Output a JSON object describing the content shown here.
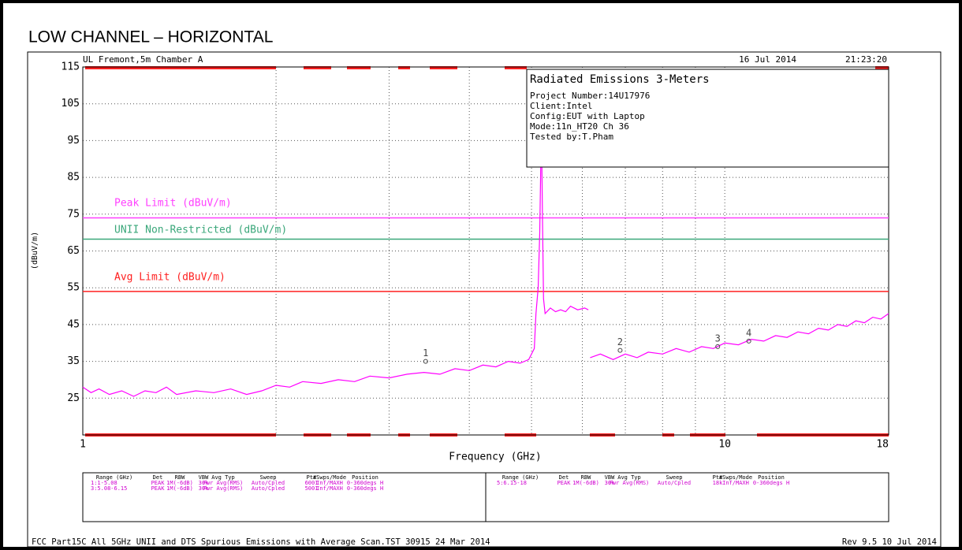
{
  "title": "LOW CHANNEL – HORIZONTAL",
  "header": {
    "site": "UL Fremont,5m Chamber A",
    "date": "16 Jul 2014",
    "time": "21:23:20"
  },
  "info": {
    "heading": "Radiated Emissions 3-Meters",
    "lines": [
      "Project Number:14U17976",
      "Client:Intel",
      "Config:EUT with Laptop",
      "Mode:11n_HT20 Ch 36",
      "Tested by:T.Pham"
    ]
  },
  "chart_data": {
    "type": "line",
    "log_x": true,
    "x_label": "Frequency (GHz)",
    "y_label": "(dBuV/m)",
    "xlim": [
      1,
      18
    ],
    "xticks": [
      1,
      10,
      18
    ],
    "xminor": [
      2,
      3,
      4,
      5,
      6,
      7,
      8,
      9
    ],
    "ylim": [
      15,
      115
    ],
    "yticks": [
      25,
      35,
      45,
      55,
      65,
      75,
      85,
      95,
      105,
      115
    ],
    "grid": true,
    "lines": [
      {
        "name": "Peak Limit (dBuV/m)",
        "color": "#ff40ff",
        "value": 74
      },
      {
        "name": "UNII Non-Restricted (dBuV/m)",
        "color": "#3aa77a",
        "value": 68.2
      },
      {
        "name": "Avg Limit (dBuV/m)",
        "color": "#ff2020",
        "value": 54
      }
    ],
    "series": [
      {
        "color": "#ff00ff",
        "x": [
          1.0,
          1.03,
          1.06,
          1.1,
          1.15,
          1.2,
          1.25,
          1.3,
          1.35,
          1.4,
          1.5,
          1.6,
          1.7,
          1.8,
          1.9,
          2.0,
          2.1,
          2.2,
          2.35,
          2.5,
          2.65,
          2.8,
          3.0,
          3.2,
          3.4,
          3.6,
          3.8,
          4.0,
          4.2,
          4.4,
          4.6,
          4.8,
          4.95,
          5.05,
          5.08,
          5.12,
          5.15,
          5.18,
          5.2,
          5.22,
          5.25,
          5.35,
          5.45,
          5.55,
          5.65,
          5.75,
          5.9,
          6.05,
          6.13,
          6.15,
          6.17,
          6.4,
          6.7,
          7.0,
          7.3,
          7.6,
          8.0,
          8.4,
          8.8,
          9.2,
          9.6,
          10,
          10.5,
          11,
          11.5,
          12,
          12.5,
          13,
          13.5,
          14,
          14.5,
          15,
          15.5,
          16,
          16.5,
          17,
          17.5,
          18
        ],
        "values": [
          28,
          26.5,
          27.5,
          26,
          27,
          25.5,
          27,
          26.5,
          28,
          26,
          27,
          26.5,
          27.5,
          26,
          27,
          28.5,
          28,
          29.5,
          29,
          30,
          29.5,
          31,
          30.5,
          31.5,
          32,
          31.5,
          33,
          32.5,
          34,
          33.5,
          35,
          34.5,
          35.5,
          38.5,
          48,
          55,
          70,
          100,
          75,
          52,
          48,
          49.5,
          48.5,
          49,
          48.5,
          50,
          49,
          49.5,
          49,
          null,
          36,
          37,
          35.5,
          37,
          36,
          37.5,
          37,
          38.5,
          37.5,
          39,
          38.5,
          40,
          39.5,
          41,
          40.5,
          42,
          41.5,
          43,
          42.5,
          44,
          43.5,
          45,
          44.5,
          46,
          45.5,
          47,
          46.5,
          48
        ]
      }
    ],
    "markers": [
      {
        "label": "1",
        "x": 3.42,
        "y": 35
      },
      {
        "label": "2",
        "x": 6.87,
        "y": 38
      },
      {
        "label": "3",
        "x": 9.75,
        "y": 39
      },
      {
        "label": "4",
        "x": 10.9,
        "y": 40.5
      }
    ]
  },
  "table": {
    "headers": [
      "Range (GHz)",
      "Det",
      "RBW",
      "VBW",
      "Avg Typ",
      "Sweep",
      "Pts",
      "#Swps/Mode",
      "Position"
    ],
    "left_rows": [
      [
        "1:1-5.08",
        "PEAK",
        "1M(-6dB)",
        "30k",
        "Pwr Avg(RMS)",
        "Auto/Cpled",
        "6001",
        "Inf/MAXH",
        "0-360degs H"
      ],
      [
        "3:5.08-6.15",
        "PEAK",
        "1M(-6dB)",
        "30k",
        "Pwr Avg(RMS)",
        "Auto/Cpled",
        "5001",
        "Inf/MAXH",
        "0-360degs H"
      ]
    ],
    "right_rows": [
      [
        "5:6.15-18",
        "PEAK",
        "1M(-6dB)",
        "30k",
        "Pwr Avg(RMS)",
        "Auto/Cpled",
        "18k",
        "Inf/MAXH",
        "0-360degs H"
      ]
    ]
  },
  "footer": {
    "left": "FCC Part15C All 5GHz UNII and DTS Spurious Emissions with Average Scan.TST 30915 24 Mar 2014",
    "right": "Rev 9.5 10 Jul 2014"
  }
}
